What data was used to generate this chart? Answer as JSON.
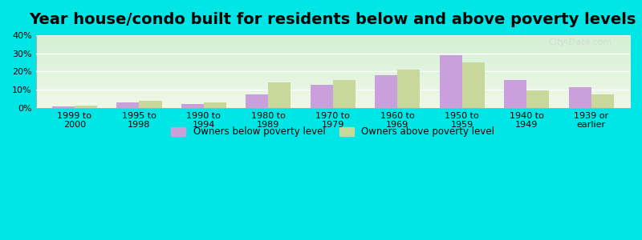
{
  "title": "Year house/condo built for residents below and above poverty levels",
  "categories": [
    "1999 to\n2000",
    "1995 to\n1998",
    "1990 to\n1994",
    "1980 to\n1989",
    "1970 to\n1979",
    "1960 to\n1969",
    "1950 to\n1959",
    "1940 to\n1949",
    "1939 or\nearlier"
  ],
  "below_poverty": [
    1.0,
    3.0,
    2.0,
    7.5,
    12.5,
    18.0,
    29.0,
    15.5,
    11.5
  ],
  "above_poverty": [
    1.2,
    3.8,
    3.2,
    14.0,
    15.5,
    21.0,
    25.0,
    9.5,
    7.5
  ],
  "below_color": "#c9a0dc",
  "above_color": "#c8d89a",
  "background_top": "#d4f0d4",
  "background_bottom": "#f0f8e8",
  "outer_bg": "#00e5e5",
  "ylim": [
    0,
    40
  ],
  "yticks": [
    0,
    10,
    20,
    30,
    40
  ],
  "ytick_labels": [
    "0%",
    "10%",
    "20%",
    "30%",
    "40%"
  ],
  "title_fontsize": 14,
  "legend_below_label": "Owners below poverty level",
  "legend_above_label": "Owners above poverty level",
  "bar_width": 0.35,
  "watermark": "City-Data.com"
}
